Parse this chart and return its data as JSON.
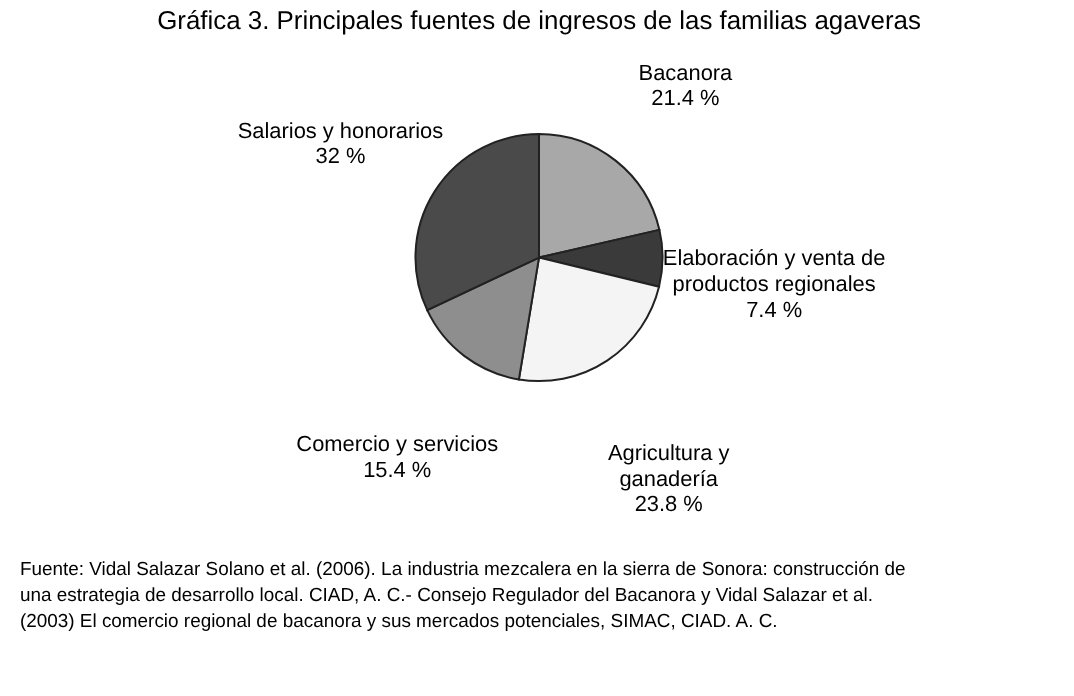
{
  "chart_data": {
    "type": "pie",
    "title": "Gráfica 3. Principales fuentes de ingresos de las familias agaveras",
    "categories": [
      "Bacanora",
      "Elaboración y venta de productos regionales",
      "Agricultura y ganadería",
      "Comercio y servicios",
      "Salarios y honorarios"
    ],
    "values": [
      21.4,
      7.4,
      23.8,
      15.4,
      32
    ],
    "value_labels": [
      "21.4 %",
      "7.4 %",
      "23.8 %",
      "15.4 %",
      "32 %"
    ],
    "colors": [
      "#a8a8a8",
      "#3a3a3a",
      "#f4f4f4",
      "#8e8e8e",
      "#4a4a4a"
    ],
    "annotations": [
      "Fuente: Vidal Salazar Solano et al. (2006). La industria mezcalera en la sierra de Sonora: construcción de una estrategia de desarrollo local. CIAD, A. C.- Consejo Regulador del Bacanora y Vidal Salazar et al. (2003) El comercio regional de bacanora y sus mercados potenciales, SIMAC, CIAD. A. C."
    ]
  }
}
